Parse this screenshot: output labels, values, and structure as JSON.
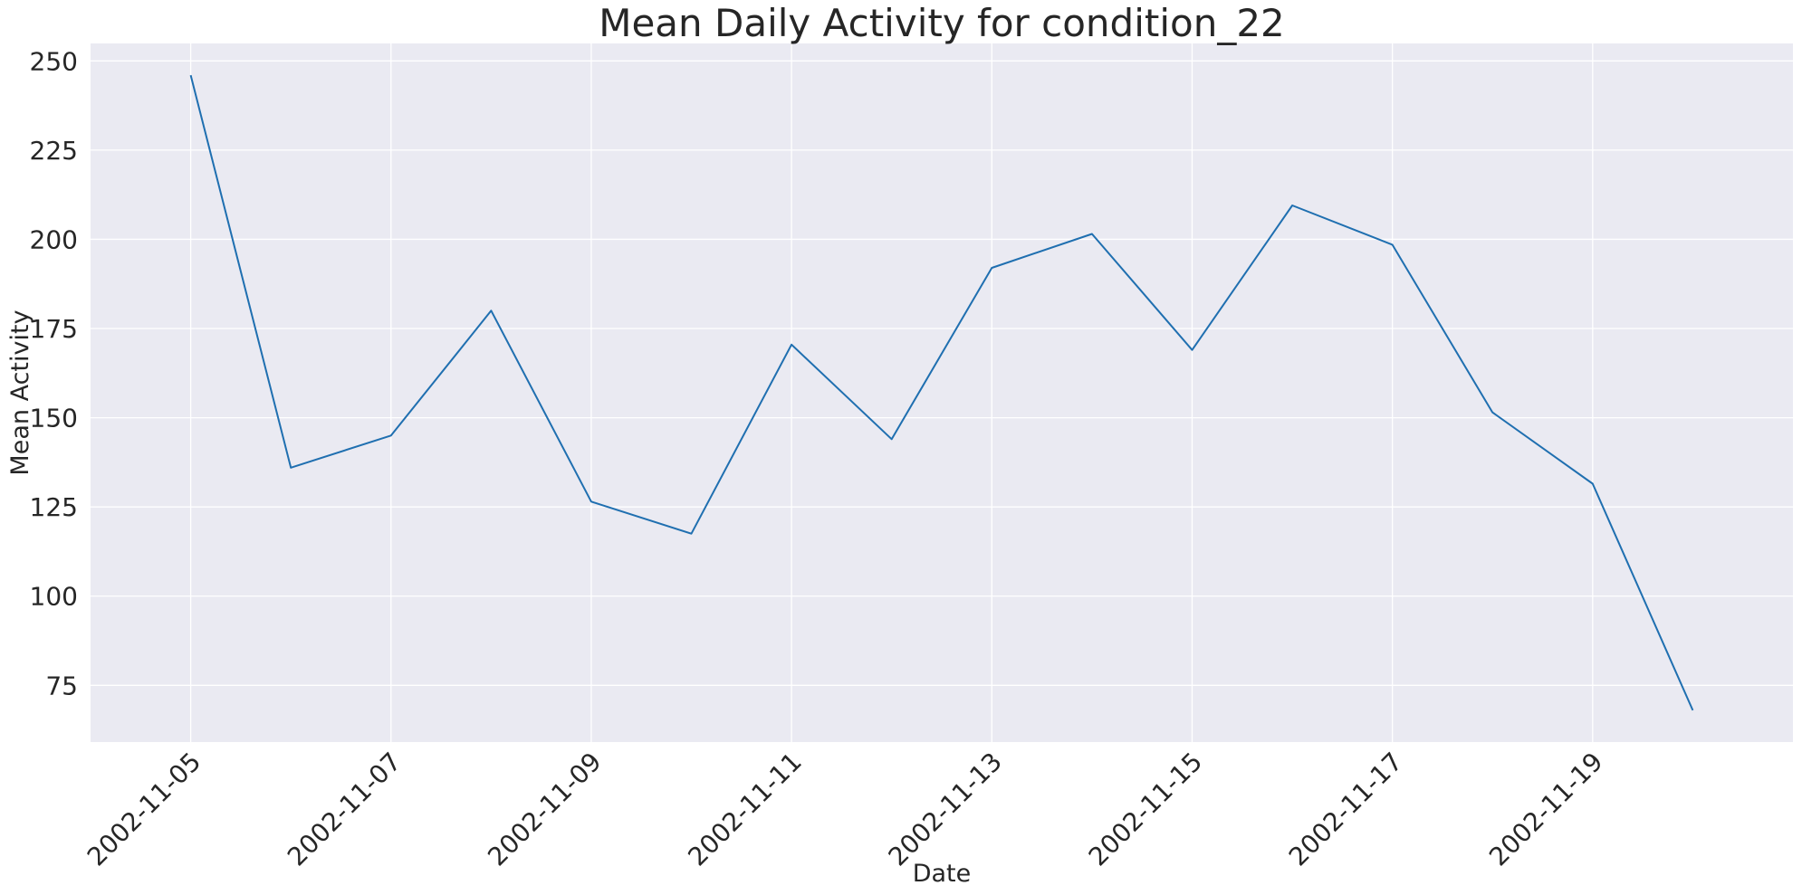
{
  "colors": {
    "plot_background": "#eaeaf2",
    "grid": "#ffffff",
    "series": "#1f6fb0",
    "text": "#262626"
  },
  "chart_data": {
    "type": "line",
    "title": "Mean Daily Activity for condition_22",
    "xlabel": "Date",
    "ylabel": "Mean Activity",
    "x": [
      "2002-11-05",
      "2002-11-06",
      "2002-11-07",
      "2002-11-08",
      "2002-11-09",
      "2002-11-10",
      "2002-11-11",
      "2002-11-12",
      "2002-11-13",
      "2002-11-14",
      "2002-11-15",
      "2002-11-16",
      "2002-11-17",
      "2002-11-18",
      "2002-11-19",
      "2002-11-20"
    ],
    "y": [
      246,
      136,
      145,
      180,
      126.5,
      117.5,
      170.5,
      144,
      192,
      201.5,
      169,
      209.5,
      198.5,
      151.5,
      131.5,
      68
    ],
    "xticks": [
      "2002-11-05",
      "2002-11-07",
      "2002-11-09",
      "2002-11-11",
      "2002-11-13",
      "2002-11-15",
      "2002-11-17",
      "2002-11-19"
    ],
    "yticks": [
      75,
      100,
      125,
      150,
      175,
      200,
      225,
      250
    ],
    "xlim": [
      "2002-11-04",
      "2002-11-21"
    ],
    "ylim": [
      59.1,
      254.9
    ],
    "grid": true,
    "legend": "none"
  }
}
